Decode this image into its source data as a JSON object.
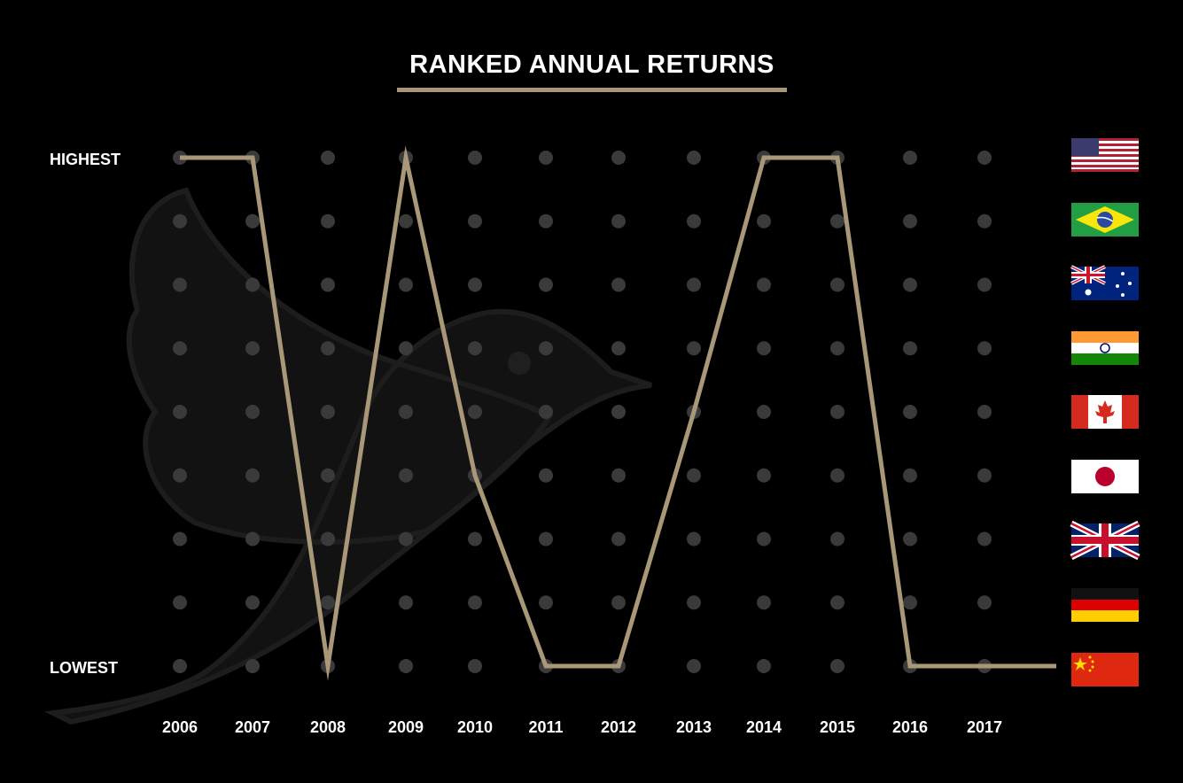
{
  "chart_data": {
    "type": "line",
    "title": "RANKED ANNUAL RETURNS",
    "y_top_label": "HIGHEST",
    "y_bottom_label": "LOWEST",
    "rank_levels": 9,
    "categories": [
      "2006",
      "2007",
      "2008",
      "2009",
      "2010",
      "2011",
      "2012",
      "2013",
      "2014",
      "2015",
      "2016",
      "2017"
    ],
    "series": [
      {
        "values": [
          1,
          1,
          9,
          1,
          6,
          9,
          9,
          5,
          1,
          1,
          9,
          9
        ]
      }
    ],
    "legend_placement": "right",
    "legend_flags": [
      "usa-flag-icon",
      "brazil-flag-icon",
      "australia-flag-icon",
      "india-flag-icon",
      "canada-flag-icon",
      "japan-flag-icon",
      "uk-flag-icon",
      "germany-flag-icon",
      "china-flag-icon"
    ],
    "colors": {
      "background": "#000000",
      "line": "#a89878",
      "dot": "#3a3a3a",
      "watermark": "#121212",
      "text": "#ffffff"
    }
  }
}
